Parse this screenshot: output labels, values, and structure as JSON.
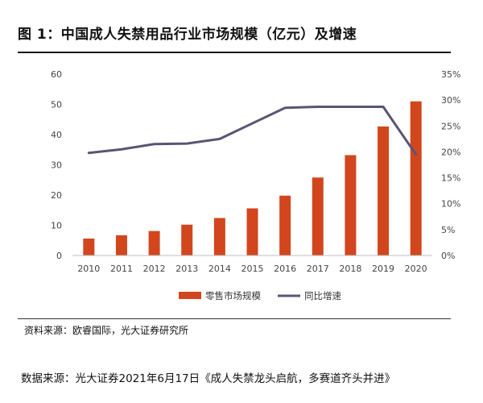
{
  "figure": {
    "title": "图 1：中国成人失禁用品行业市场规模（亿元）及增速",
    "source_inner": "资料来源：欧睿国际，光大证券研究所",
    "source_outer": "数据来源：光大证券2021年6月17日《成人失禁龙头启航，多赛道齐头并进》"
  },
  "colors": {
    "bar": "#D2461E",
    "line": "#5B5474",
    "axis": "#BFBFBF"
  },
  "chart_data": {
    "type": "bar",
    "title": "",
    "xlabel": "",
    "ylabel": "",
    "categories": [
      "2010",
      "2011",
      "2012",
      "2013",
      "2014",
      "2015",
      "2016",
      "2017",
      "2018",
      "2019",
      "2020"
    ],
    "series": [
      {
        "name": "零售市场规模",
        "type": "bar",
        "axis": "left",
        "values": [
          5.6,
          6.7,
          8.1,
          10.2,
          12.4,
          15.6,
          19.8,
          25.8,
          33.2,
          42.7,
          51.0
        ]
      },
      {
        "name": "同比增速",
        "type": "line",
        "axis": "right",
        "values": [
          19.8,
          20.5,
          21.5,
          21.6,
          22.5,
          25.5,
          28.5,
          28.7,
          28.7,
          28.7,
          19.5
        ]
      }
    ],
    "ylim": [
      0,
      60
    ],
    "yticks": [
      "0",
      "10",
      "20",
      "30",
      "40",
      "50",
      "60"
    ],
    "y2lim": [
      0,
      35
    ],
    "y2ticks": [
      "0%",
      "5%",
      "10%",
      "15%",
      "20%",
      "25%",
      "30%",
      "35%"
    ],
    "grid": false,
    "legend": "bottom"
  }
}
